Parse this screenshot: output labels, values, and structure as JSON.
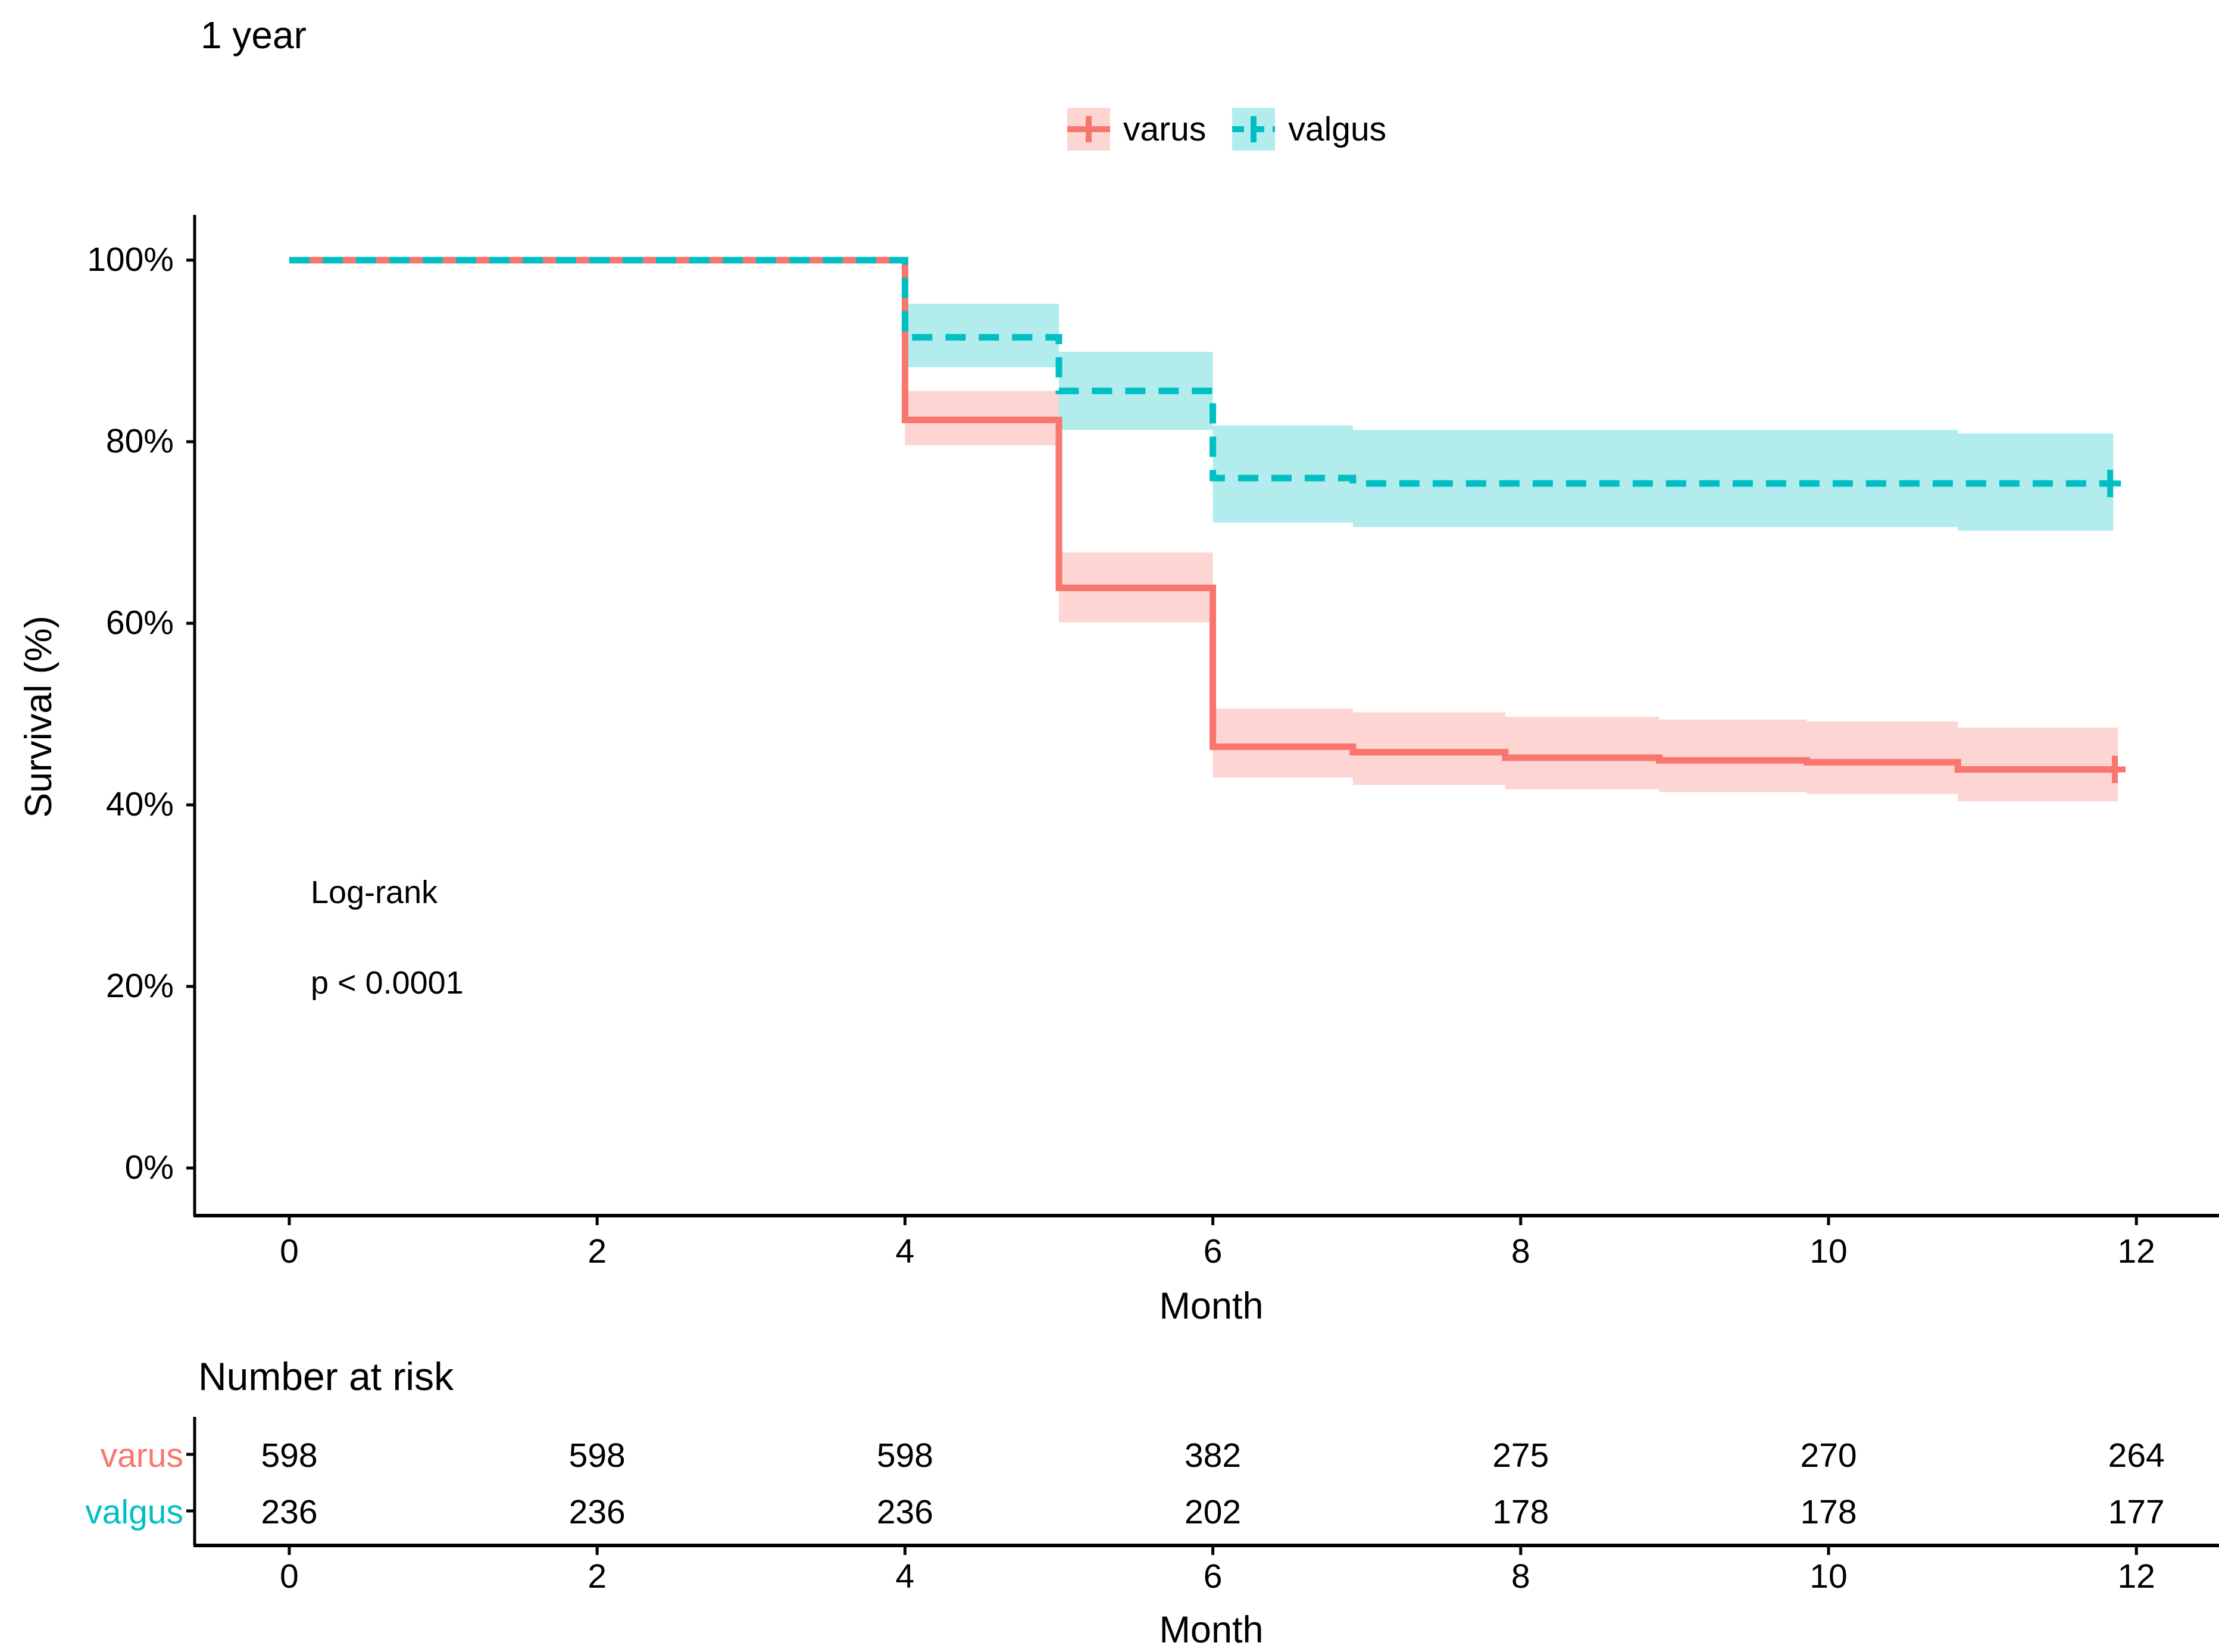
{
  "chart_data": {
    "type": "line",
    "subtype": "kaplan-meier-step",
    "title": "1 year",
    "x_label": "Month",
    "y_label": "Survival (%)",
    "x_ticks": [
      0,
      2,
      4,
      6,
      8,
      10,
      12
    ],
    "y_ticks": [
      {
        "value": 0,
        "label": "0%"
      },
      {
        "value": 20,
        "label": "20%"
      },
      {
        "value": 40,
        "label": "40%"
      },
      {
        "value": 60,
        "label": "60%"
      },
      {
        "value": 80,
        "label": "80%"
      },
      {
        "value": 100,
        "label": "100%"
      }
    ],
    "xlim": [
      0,
      12
    ],
    "ylim": [
      0,
      100
    ],
    "grid": false,
    "legend_position": "top",
    "annotations": {
      "logrank": "Log-rank",
      "pvalue": "p < 0.0001"
    },
    "series": [
      {
        "name": "varus",
        "color": "#F8766D",
        "band_color": "rgba(248,118,109,0.30)",
        "linestyle": "solid",
        "steps": [
          [
            0,
            100
          ],
          [
            4,
            100
          ],
          [
            4,
            82.4
          ],
          [
            5,
            82.4
          ],
          [
            5,
            63.9
          ],
          [
            6,
            63.9
          ],
          [
            6,
            46.4
          ],
          [
            6.91,
            46.4
          ],
          [
            6.91,
            45.8
          ],
          [
            7.9,
            45.8
          ],
          [
            7.9,
            45.2
          ],
          [
            8.9,
            45.2
          ],
          [
            8.9,
            44.9
          ],
          [
            9.86,
            44.9
          ],
          [
            9.86,
            44.7
          ],
          [
            10.84,
            44.7
          ],
          [
            10.84,
            43.9
          ],
          [
            11.88,
            43.9
          ]
        ],
        "censor_mark": [
          11.86,
          43.9
        ],
        "ci_segments": [
          {
            "x0": 4,
            "x1": 5,
            "lo": 79.6,
            "hi": 85.6
          },
          {
            "x0": 5,
            "x1": 6,
            "lo": 60.1,
            "hi": 67.8
          },
          {
            "x0": 6,
            "x1": 6.91,
            "lo": 43.0,
            "hi": 50.6
          },
          {
            "x0": 6.91,
            "x1": 7.9,
            "lo": 42.2,
            "hi": 50.2
          },
          {
            "x0": 7.9,
            "x1": 8.9,
            "lo": 41.7,
            "hi": 49.7
          },
          {
            "x0": 8.9,
            "x1": 9.86,
            "lo": 41.4,
            "hi": 49.4
          },
          {
            "x0": 9.86,
            "x1": 10.84,
            "lo": 41.2,
            "hi": 49.2
          },
          {
            "x0": 10.84,
            "x1": 11.88,
            "lo": 40.4,
            "hi": 48.5
          }
        ]
      },
      {
        "name": "valgus",
        "color": "#00BFC4",
        "band_color": "rgba(0,191,196,0.30)",
        "linestyle": "dashed",
        "steps": [
          [
            0,
            100
          ],
          [
            4,
            100
          ],
          [
            4,
            91.5
          ],
          [
            5,
            91.5
          ],
          [
            5,
            85.6
          ],
          [
            6,
            85.6
          ],
          [
            6,
            76.0
          ],
          [
            6.91,
            76.0
          ],
          [
            6.91,
            75.4
          ],
          [
            11.85,
            75.4
          ]
        ],
        "censor_mark": [
          11.83,
          75.4
        ],
        "ci_segments": [
          {
            "x0": 4,
            "x1": 5,
            "lo": 88.2,
            "hi": 95.2
          },
          {
            "x0": 5,
            "x1": 6,
            "lo": 81.3,
            "hi": 89.9
          },
          {
            "x0": 6,
            "x1": 6.91,
            "lo": 71.1,
            "hi": 81.8
          },
          {
            "x0": 6.91,
            "x1": 10.84,
            "lo": 70.6,
            "hi": 81.3
          },
          {
            "x0": 10.84,
            "x1": 11.85,
            "lo": 70.2,
            "hi": 80.9
          }
        ]
      }
    ]
  },
  "legend": {
    "items": [
      {
        "label": "varus",
        "color": "#F8766D",
        "band_color": "rgba(248,118,109,0.30)",
        "linestyle": "solid"
      },
      {
        "label": "valgus",
        "color": "#00BFC4",
        "band_color": "rgba(0,191,196,0.30)",
        "linestyle": "dashed"
      }
    ]
  },
  "risk_table": {
    "title": "Number at risk",
    "x_label": "Month",
    "x_ticks": [
      0,
      2,
      4,
      6,
      8,
      10,
      12
    ],
    "rows": [
      {
        "label": "varus",
        "color": "#F8766D",
        "values": [
          598,
          598,
          598,
          382,
          275,
          270,
          264
        ]
      },
      {
        "label": "valgus",
        "color": "#00BFC4",
        "values": [
          236,
          236,
          236,
          202,
          178,
          178,
          177
        ]
      }
    ]
  }
}
